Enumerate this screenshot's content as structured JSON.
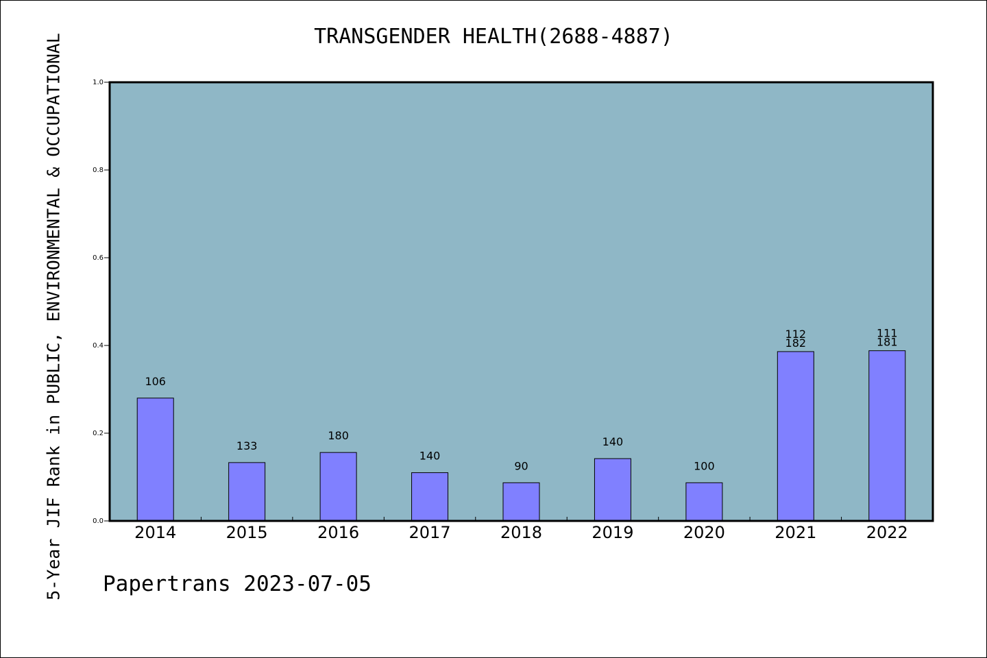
{
  "chart_data": {
    "type": "bar",
    "title": "TRANSGENDER HEALTH(2688-4887)",
    "ylabel": "5-Year JIF Rank in PUBLIC, ENVIRONMENTAL & OCCUPATIONAL",
    "xlabel": "",
    "categories": [
      "2014",
      "2015",
      "2016",
      "2017",
      "2018",
      "2019",
      "2020",
      "2021",
      "2022"
    ],
    "values": [
      0.28,
      0.133,
      0.156,
      0.11,
      0.087,
      0.142,
      0.087,
      0.386,
      0.388
    ],
    "bar_labels": [
      [
        "106"
      ],
      [
        "133"
      ],
      [
        "180"
      ],
      [
        "140"
      ],
      [
        "90"
      ],
      [
        "140"
      ],
      [
        "100"
      ],
      [
        "112",
        "182"
      ],
      [
        "111",
        "181"
      ]
    ],
    "ylim": [
      0,
      1.0
    ],
    "yticks": [
      "0.0",
      "0.2",
      "0.4",
      "0.6",
      "0.8",
      "1.0"
    ],
    "grid": false,
    "colors": {
      "plot_bg": "#8fb7c6",
      "bar": "#8080ff",
      "bar_edge": "#000000"
    }
  },
  "footer": "Papertrans 2023-07-05"
}
